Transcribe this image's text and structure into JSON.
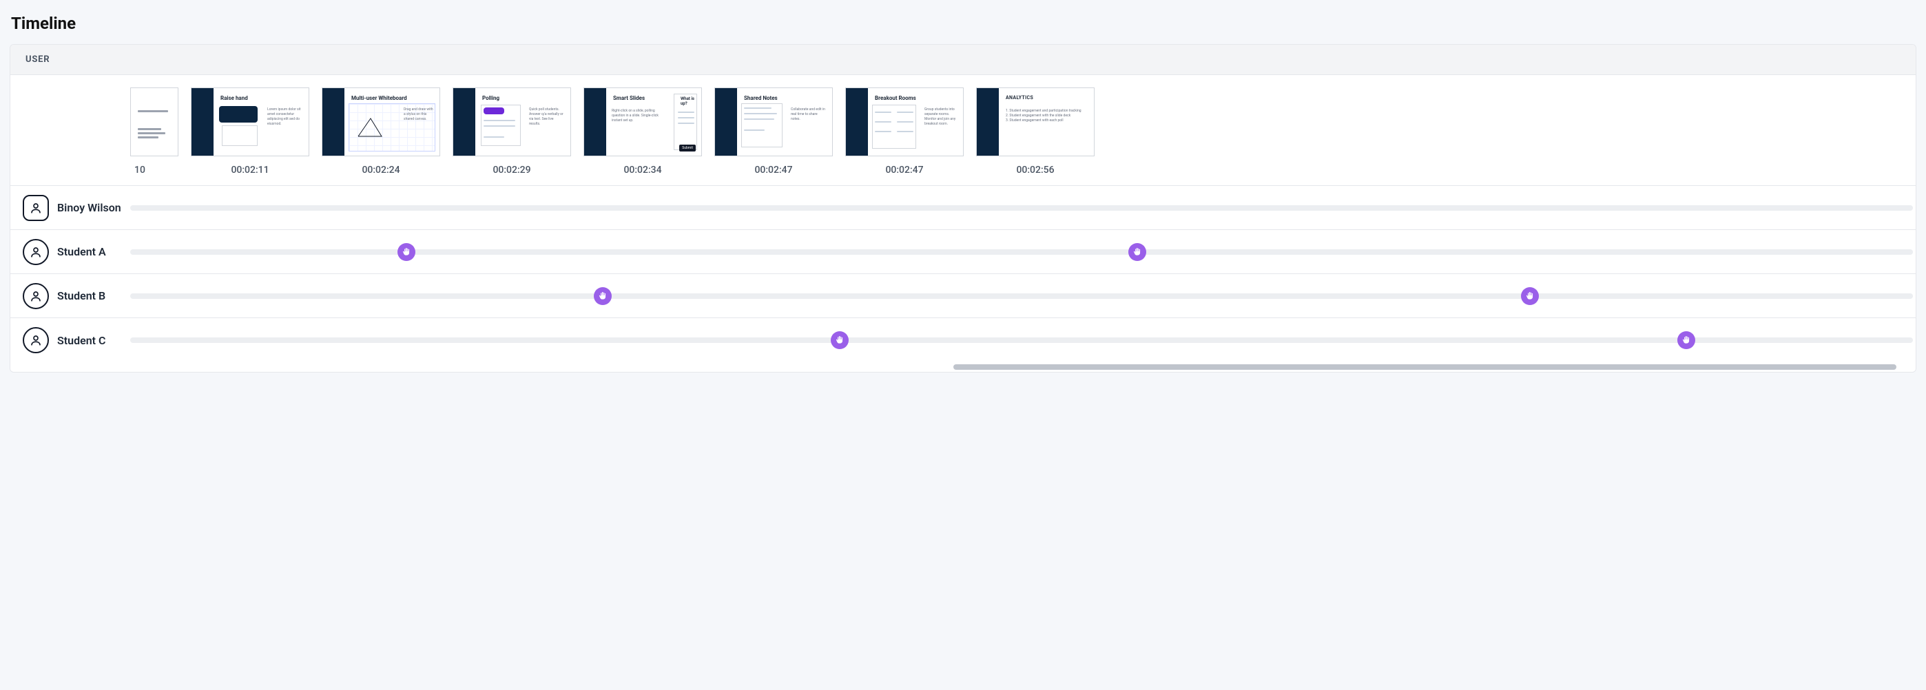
{
  "title": "Timeline",
  "header": {
    "user_label": "USER"
  },
  "colors": {
    "page_bg": "#f5f7fa",
    "card_border": "#e5e7eb",
    "header_bg": "#f3f4f6",
    "track_bg": "#eceef1",
    "marker_bg": "#9a5fe9",
    "slide_sidebar": "#0b2540",
    "scroll_thumb": "#bfc4cc"
  },
  "thumbnails": [
    {
      "time": "10",
      "title": "",
      "partial": true
    },
    {
      "time": "00:02:11",
      "title": "Raise hand",
      "partial": false
    },
    {
      "time": "00:02:24",
      "title": "Multi-user Whiteboard",
      "partial": false
    },
    {
      "time": "00:02:29",
      "title": "Polling",
      "partial": false
    },
    {
      "time": "00:02:34",
      "title": "Smart Slides",
      "partial": false
    },
    {
      "time": "00:02:47",
      "title": "Shared Notes",
      "partial": false
    },
    {
      "time": "00:02:47",
      "title": "Breakout Rooms",
      "partial": false
    },
    {
      "time": "00:02:56",
      "title": "ANALYTICS",
      "partial": false
    }
  ],
  "users": [
    {
      "name": "Binoy Wilson",
      "avatar_shape": "rounded",
      "markers": []
    },
    {
      "name": "Student A",
      "avatar_shape": "round",
      "markers": [
        {
          "pos_pct": 15.5,
          "type": "raise-hand"
        },
        {
          "pos_pct": 56.5,
          "type": "raise-hand"
        }
      ]
    },
    {
      "name": "Student B",
      "avatar_shape": "round",
      "markers": [
        {
          "pos_pct": 26.5,
          "type": "raise-hand"
        },
        {
          "pos_pct": 78.5,
          "type": "raise-hand"
        }
      ]
    },
    {
      "name": "Student C",
      "avatar_shape": "round",
      "markers": [
        {
          "pos_pct": 39.8,
          "type": "raise-hand"
        },
        {
          "pos_pct": 87.3,
          "type": "raise-hand"
        }
      ]
    }
  ],
  "scrollbar": {
    "left_pct": 49.5,
    "width_pct": 49.5
  }
}
